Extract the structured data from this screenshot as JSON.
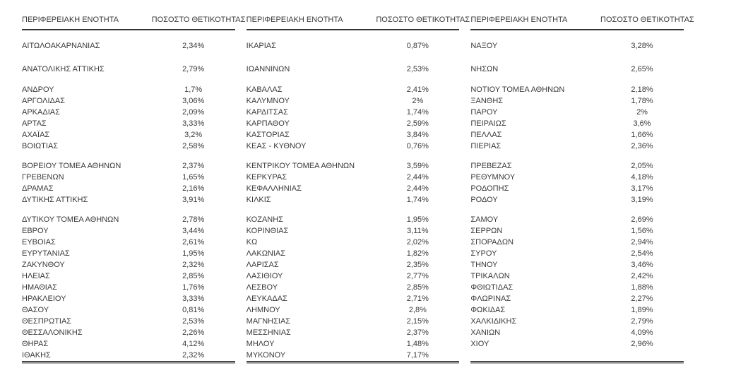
{
  "page": {
    "background": "#ffffff",
    "text_color": "#3a3a3a",
    "rule_color": "#343434",
    "rule_shadow_color": "#b0b0b0"
  },
  "table": {
    "column_headers": {
      "region": "ΠΕΡΙΦΕΡΕΙΑΚΗ ΕΝΟΤΗΤΑ",
      "positivity": "ΠΟΣΟΣΤΟ ΘΕΤΙΚΟΤΗΤΑΣ"
    },
    "blocks": [
      {
        "groups": [
          {
            "rows": [
              {
                "region": "ΑΙΤΩΛΟΑΚΑΡΝΑΝΙΑΣ",
                "value": "2,34%"
              }
            ]
          },
          {
            "rows": [
              {
                "region": "ΑΝΑΤΟΛΙΚΗΣ ΑΤΤΙΚΗΣ",
                "value": "2,79%"
              }
            ]
          },
          {
            "rows": [
              {
                "region": "ΑΝΔΡΟΥ",
                "value": "1,7%"
              },
              {
                "region": "ΑΡΓΟΛΙΔΑΣ",
                "value": "3,06%"
              },
              {
                "region": "ΑΡΚΑΔΙΑΣ",
                "value": "2,09%"
              },
              {
                "region": "ΑΡΤΑΣ",
                "value": "3,33%"
              },
              {
                "region": "ΑΧΑΪΑΣ",
                "value": "3,2%"
              },
              {
                "region": "ΒΟΙΩΤΙΑΣ",
                "value": "2,58%"
              }
            ]
          },
          {
            "rows": [
              {
                "region": "ΒΟΡΕΙΟΥ ΤΟΜΕΑ ΑΘΗΝΩΝ",
                "value": "2,37%"
              },
              {
                "region": "ΓΡΕΒΕΝΩΝ",
                "value": "1,65%"
              },
              {
                "region": "ΔΡΑΜΑΣ",
                "value": "2,16%"
              },
              {
                "region": "ΔΥΤΙΚΗΣ ΑΤΤΙΚΗΣ",
                "value": "3,91%"
              }
            ]
          },
          {
            "rows": [
              {
                "region": "ΔΥΤΙΚΟΥ ΤΟΜΕΑ ΑΘΗΝΩΝ",
                "value": "2,78%"
              },
              {
                "region": "ΕΒΡΟΥ",
                "value": "3,44%"
              },
              {
                "region": "ΕΥΒΟΙΑΣ",
                "value": "2,61%"
              },
              {
                "region": "ΕΥΡΥΤΑΝΙΑΣ",
                "value": "1,95%"
              },
              {
                "region": "ΖΑΚΥΝΘΟΥ",
                "value": "2,32%"
              },
              {
                "region": "ΗΛΕΙΑΣ",
                "value": "2,85%"
              },
              {
                "region": "ΗΜΑΘΙΑΣ",
                "value": "1,76%"
              },
              {
                "region": "ΗΡΑΚΛΕΙΟΥ",
                "value": "3,33%"
              },
              {
                "region": "ΘΑΣΟΥ",
                "value": "0,81%"
              },
              {
                "region": "ΘΕΣΠΡΩΤΙΑΣ",
                "value": "2,53%"
              },
              {
                "region": "ΘΕΣΣΑΛΟΝΙΚΗΣ",
                "value": "2,26%"
              },
              {
                "region": "ΘΗΡΑΣ",
                "value": "4,12%"
              },
              {
                "region": "ΙΘΑΚΗΣ",
                "value": "2,32%"
              }
            ]
          }
        ]
      },
      {
        "groups": [
          {
            "rows": [
              {
                "region": "ΙΚΑΡΙΑΣ",
                "value": "0,87%"
              }
            ]
          },
          {
            "rows": [
              {
                "region": "ΙΩΑΝΝΙΝΩΝ",
                "value": "2,53%"
              }
            ]
          },
          {
            "rows": [
              {
                "region": "ΚΑΒΑΛΑΣ",
                "value": "2,41%"
              },
              {
                "region": "ΚΑΛΥΜΝΟΥ",
                "value": "2%"
              },
              {
                "region": "ΚΑΡΔΙΤΣΑΣ",
                "value": "1,74%"
              },
              {
                "region": "ΚΑΡΠΑΘΟΥ",
                "value": "2,59%"
              },
              {
                "region": "ΚΑΣΤΟΡΙΑΣ",
                "value": "3,84%"
              },
              {
                "region": "ΚΕΑΣ - ΚΥΘΝΟΥ",
                "value": "0,76%"
              }
            ]
          },
          {
            "rows": [
              {
                "region": "ΚΕΝΤΡΙΚΟΥ ΤΟΜΕΑ ΑΘΗΝΩΝ",
                "value": "3,59%"
              },
              {
                "region": "ΚΕΡΚΥΡΑΣ",
                "value": "2,44%"
              },
              {
                "region": "ΚΕΦΑΛΛΗΝΙΑΣ",
                "value": "2,44%"
              },
              {
                "region": "ΚΙΛΚΙΣ",
                "value": "1,74%"
              }
            ]
          },
          {
            "rows": [
              {
                "region": "ΚΟΖΑΝΗΣ",
                "value": "1,95%"
              },
              {
                "region": "ΚΟΡΙΝΘΙΑΣ",
                "value": "3,11%"
              },
              {
                "region": "ΚΩ",
                "value": "2,02%"
              },
              {
                "region": "ΛΑΚΩΝΙΑΣ",
                "value": "1,82%"
              },
              {
                "region": "ΛΑΡΙΣΑΣ",
                "value": "2,35%"
              },
              {
                "region": "ΛΑΣΙΘΙΟΥ",
                "value": "2,77%"
              },
              {
                "region": "ΛΕΣΒΟΥ",
                "value": "2,85%"
              },
              {
                "region": "ΛΕΥΚΑΔΑΣ",
                "value": "2,71%"
              },
              {
                "region": "ΛΗΜΝΟΥ",
                "value": "2,8%"
              },
              {
                "region": "ΜΑΓΝΗΣΙΑΣ",
                "value": "2,15%"
              },
              {
                "region": "ΜΕΣΣΗΝΙΑΣ",
                "value": "2,37%"
              },
              {
                "region": "ΜΗΛΟΥ",
                "value": "1,48%"
              },
              {
                "region": "ΜΥΚΟΝΟΥ",
                "value": "7,17%"
              }
            ]
          }
        ]
      },
      {
        "groups": [
          {
            "rows": [
              {
                "region": "ΝΑΞΟΥ",
                "value": "3,28%"
              }
            ]
          },
          {
            "rows": [
              {
                "region": "ΝΗΣΩΝ",
                "value": "2,65%"
              }
            ]
          },
          {
            "rows": [
              {
                "region": "ΝΟΤΙΟΥ ΤΟΜΕΑ ΑΘΗΝΩΝ",
                "value": "2,18%"
              },
              {
                "region": "ΞΑΝΘΗΣ",
                "value": "1,78%"
              },
              {
                "region": "ΠΑΡΟΥ",
                "value": "2%"
              },
              {
                "region": "ΠΕΙΡΑΙΩΣ",
                "value": "3,6%"
              },
              {
                "region": "ΠΕΛΛΑΣ",
                "value": "1,66%"
              },
              {
                "region": "ΠΙΕΡΙΑΣ",
                "value": "2,36%"
              }
            ]
          },
          {
            "rows": [
              {
                "region": "ΠΡΕΒΕΖΑΣ",
                "value": "2,05%"
              },
              {
                "region": "ΡΕΘΥΜΝΟΥ",
                "value": "4,18%"
              },
              {
                "region": "ΡΟΔΟΠΗΣ",
                "value": "3,17%"
              },
              {
                "region": "ΡΟΔΟΥ",
                "value": "3,19%"
              }
            ]
          },
          {
            "rows": [
              {
                "region": "ΣΑΜΟΥ",
                "value": "2,69%"
              },
              {
                "region": "ΣΕΡΡΩΝ",
                "value": "1,56%"
              },
              {
                "region": "ΣΠΟΡΑΔΩΝ",
                "value": "2,94%"
              },
              {
                "region": "ΣΥΡΟΥ",
                "value": "2,54%"
              },
              {
                "region": "ΤΗΝΟΥ",
                "value": "3,46%"
              },
              {
                "region": "ΤΡΙΚΑΛΩΝ",
                "value": "2,42%"
              },
              {
                "region": "ΦΘΙΩΤΙΔΑΣ",
                "value": "1,88%"
              },
              {
                "region": "ΦΛΩΡΙΝΑΣ",
                "value": "2,27%"
              },
              {
                "region": "ΦΩΚΙΔΑΣ",
                "value": "1,89%"
              },
              {
                "region": "ΧΑΛΚΙΔΙΚΗΣ",
                "value": "2,79%"
              },
              {
                "region": "ΧΑΝΙΩΝ",
                "value": "4,09%"
              },
              {
                "region": "ΧΙΟΥ",
                "value": "2,96%"
              }
            ]
          }
        ]
      }
    ]
  }
}
